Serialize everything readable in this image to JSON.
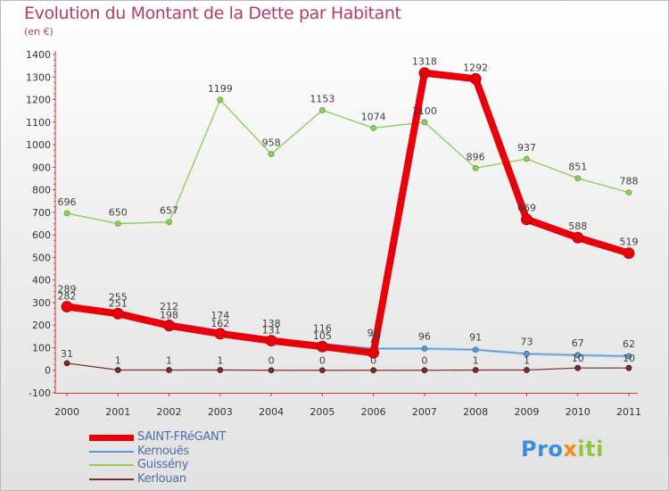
{
  "title": "Evolution du Montant de la Dette par Habitant",
  "subtitle": "(en €)",
  "logo_text": "Proxiti",
  "chart_data": {
    "type": "line",
    "title": "Evolution du Montant de la Dette par Habitant",
    "ylabel": "(en €)",
    "xlabel": "",
    "x": [
      "2000",
      "2001",
      "2002",
      "2003",
      "2004",
      "2005",
      "2006",
      "2007",
      "2008",
      "2009",
      "2010",
      "2011"
    ],
    "ylim": [
      -100,
      1400
    ],
    "yticks": [
      -100,
      0,
      100,
      200,
      300,
      400,
      500,
      600,
      700,
      800,
      900,
      1000,
      1100,
      1200,
      1300,
      1400
    ],
    "grid": false,
    "legend_position": "bottom-left",
    "series": [
      {
        "name": "SAINT-FRéGANT",
        "color": "#e8000b",
        "values": [
          282,
          251,
          198,
          162,
          131,
          105,
          77,
          1318,
          1292,
          669,
          588,
          519
        ],
        "labels": [
          "282",
          "251",
          "198",
          "162",
          "131",
          "105",
          "77",
          "1318",
          "1292",
          "669",
          "588",
          "519"
        ]
      },
      {
        "name": "Kernouës",
        "color": "#5a9bd4",
        "values": [
          289,
          255,
          212,
          174,
          138,
          116,
          96,
          96,
          91,
          73,
          67,
          62
        ],
        "labels": [
          "289",
          "255",
          "212",
          "174",
          "138",
          "116",
          "96",
          "96",
          "91",
          "73",
          "67",
          "62"
        ]
      },
      {
        "name": "Guissény",
        "color": "#8ccf5a",
        "values": [
          696,
          650,
          657,
          1199,
          958,
          1153,
          1074,
          1100,
          896,
          937,
          851,
          788
        ],
        "labels": [
          "696",
          "650",
          "657",
          "1199",
          "958",
          "1153",
          "1074",
          "1100",
          "896",
          "937",
          "851",
          "788"
        ]
      },
      {
        "name": "Kerlouan",
        "color": "#7a2c2c",
        "values": [
          31,
          1,
          1,
          1,
          0,
          0,
          0,
          0,
          1,
          1,
          10,
          10
        ],
        "labels": [
          "31",
          "1",
          "1",
          "1",
          "0",
          "0",
          "0",
          "0",
          "1",
          "1",
          "10",
          "10"
        ]
      }
    ]
  }
}
